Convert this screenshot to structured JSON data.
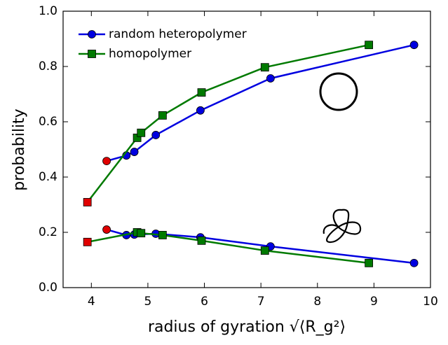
{
  "chart_data": {
    "type": "line",
    "xlabel": "radius of gyration √⟨R_g²⟩",
    "ylabel": "probability",
    "xlim": [
      3.5,
      10
    ],
    "ylim": [
      0,
      1
    ],
    "xticks": [
      4,
      5,
      6,
      7,
      8,
      9,
      10
    ],
    "yticks": [
      {
        "value": 0,
        "label": "0.0"
      },
      0.2,
      0.4,
      0.6,
      0.8,
      {
        "value": 1,
        "label": "1.0"
      }
    ],
    "legend": "upper left",
    "series": [
      {
        "name": "random heteropolymer",
        "color": "#0000e0",
        "marker": "circle",
        "marker_colors": [
          "#e00000",
          "#0000e0",
          "#0000e0",
          "#0000e0",
          "#0000e0",
          "#0000e0",
          "#0000e0"
        ],
        "x": [
          4.27,
          4.62,
          4.76,
          5.14,
          5.93,
          7.17,
          9.71
        ],
        "values": [
          0.458,
          0.478,
          0.491,
          0.552,
          0.641,
          0.757,
          0.878
        ],
        "values_lower": [
          0.21,
          0.19,
          0.192,
          0.195,
          0.182,
          0.149,
          0.089
        ]
      },
      {
        "name": "homopolymer",
        "color": "#007a00",
        "marker": "square",
        "marker_colors": [
          "#e00000",
          "#007a00",
          "#007a00",
          "#007a00",
          "#007a00",
          "#007a00",
          "#007a00"
        ],
        "x": [
          3.93,
          4.81,
          4.88,
          5.26,
          5.95,
          7.07,
          8.91
        ],
        "values": [
          0.309,
          0.542,
          0.56,
          0.623,
          0.706,
          0.797,
          0.878
        ],
        "values_lower": [
          0.165,
          0.2,
          0.197,
          0.19,
          0.17,
          0.134,
          0.089
        ]
      }
    ]
  }
}
